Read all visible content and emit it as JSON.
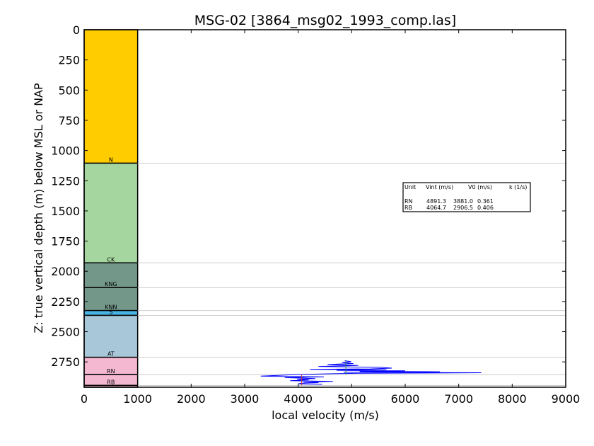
{
  "chart_data": {
    "type": "well-log",
    "title": "MSG-02 [3864_msg02_1993_comp.las]",
    "xlabel": "local velocity (m/s)",
    "ylabel": "Z: true vertical depth (m) below MSL or NAP",
    "xlim": [
      0,
      9000
    ],
    "ylim": [
      2960,
      0
    ],
    "xticks": [
      "0",
      "1000",
      "2000",
      "3000",
      "4000",
      "5000",
      "6000",
      "7000",
      "8000",
      "9000"
    ],
    "yticks": [
      "0",
      "250",
      "500",
      "750",
      "1000",
      "1250",
      "1500",
      "1750",
      "2000",
      "2250",
      "2500",
      "2750"
    ],
    "strat_column": {
      "x_range": [
        0,
        1000
      ],
      "units": [
        {
          "name": "",
          "top": 0,
          "base": 1105,
          "color": "#FFCC00"
        },
        {
          "name": "N",
          "top": 1105,
          "base": 1930,
          "color": "#A6D6A0"
        },
        {
          "name": "CK",
          "top": 1930,
          "base": 2135,
          "color": "#73988A"
        },
        {
          "name": "KNG",
          "top": 2135,
          "base": 2325,
          "color": "#73988A"
        },
        {
          "name": "KNN",
          "top": 2325,
          "base": 2365,
          "color": "#49B4E4"
        },
        {
          "name": "S",
          "top": 2365,
          "base": 2712,
          "color": "#A8C8DA"
        },
        {
          "name": "AT",
          "top": 2712,
          "base": 2855,
          "color": "#F4B8D0"
        },
        {
          "name": "RN",
          "top": 2855,
          "base": 2945,
          "color": "#F4B8D0"
        },
        {
          "name": "RB",
          "top": 2945,
          "base": 2960,
          "color": "#F4B8D0"
        }
      ]
    },
    "boundaries": [
      1105,
      1930,
      2135,
      2325,
      2365,
      2712,
      2855,
      2945
    ],
    "velocity_series": {
      "name": "local velocity",
      "color": "#0000FF",
      "points": [
        [
          4870,
          2740
        ],
        [
          4990,
          2748
        ],
        [
          4820,
          2756
        ],
        [
          5030,
          2764
        ],
        [
          4550,
          2772
        ],
        [
          5120,
          2780
        ],
        [
          4380,
          2788
        ],
        [
          5550,
          2796
        ],
        [
          5750,
          2802
        ],
        [
          5350,
          2808
        ],
        [
          4220,
          2812
        ],
        [
          5650,
          2816
        ],
        [
          4720,
          2820
        ],
        [
          6000,
          2824
        ],
        [
          5150,
          2828
        ],
        [
          6650,
          2832
        ],
        [
          4850,
          2836
        ],
        [
          7420,
          2840
        ],
        [
          5200,
          2844
        ],
        [
          4650,
          2848
        ],
        [
          3950,
          2855
        ],
        [
          3620,
          2862
        ],
        [
          3300,
          2868
        ],
        [
          4480,
          2874
        ],
        [
          3750,
          2880
        ],
        [
          4320,
          2888
        ],
        [
          3980,
          2894
        ],
        [
          4200,
          2900
        ],
        [
          3850,
          2906
        ],
        [
          4650,
          2912
        ],
        [
          4100,
          2918
        ],
        [
          4380,
          2922
        ],
        [
          4060,
          2926
        ],
        [
          4000,
          2932
        ],
        [
          4450,
          2936
        ]
      ]
    },
    "reference_lines": [
      {
        "unit": "RN",
        "vint": 4891.3,
        "v0": 3881.0,
        "k": 0.361,
        "top": 2712,
        "base": 2855,
        "color": "#2E8B57"
      },
      {
        "unit": "RB",
        "vint": 4064.7,
        "v0": 2906.5,
        "k": 0.406,
        "top": 2855,
        "base": 2945,
        "color": "#CC3333"
      }
    ],
    "table": {
      "headers": [
        "Unit",
        "Vint (m/s)",
        "V0 (m/s)",
        "k (1/s)"
      ],
      "rows": [
        [
          "RN",
          "4891.3",
          "3881.0",
          "0.361"
        ],
        [
          "RB",
          "4064.7",
          "2906.5",
          "0.406"
        ]
      ]
    }
  }
}
